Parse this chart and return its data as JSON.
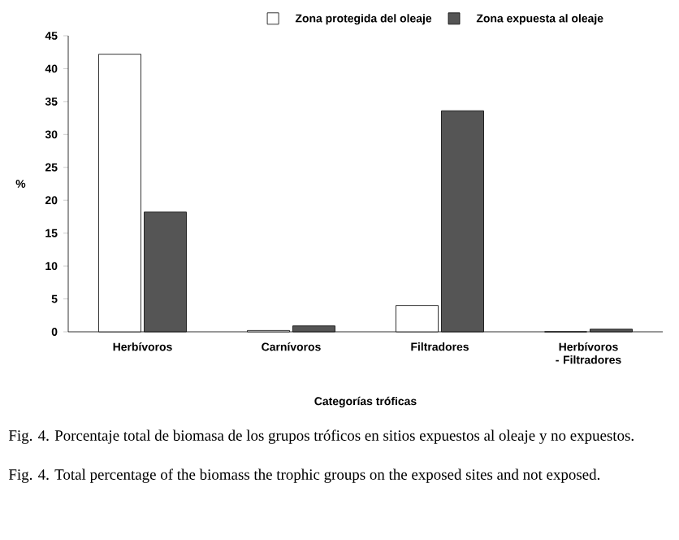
{
  "chart_data": {
    "type": "bar",
    "xlabel": "Categorías tróficas",
    "ylabel": "%",
    "categories": [
      "Herbívoros",
      "Carnívoros",
      "Filtradores",
      "Herbívoros - Filtradores"
    ],
    "series": [
      {
        "name": "Zona protegida del oleaje",
        "color": "#ffffff",
        "values": [
          42.2,
          0.2,
          4.0,
          0
        ]
      },
      {
        "name": "Zona expuesta al oleaje",
        "color": "#555555",
        "values": [
          18.2,
          0.9,
          33.6,
          0.4
        ]
      }
    ],
    "ylim": [
      0,
      45
    ],
    "yticks": [
      0,
      5,
      10,
      15,
      20,
      25,
      30,
      35,
      40,
      45
    ],
    "grid": false,
    "legend": "top",
    "annotations": [
      "Fig. 4. Porcentaje total de biomasa de los grupos tróficos en sitios expuestos al oleaje y no expuestos.",
      "Fig. 4. Total percentage of the biomass the trophic groups on the exposed sites and not exposed."
    ]
  }
}
